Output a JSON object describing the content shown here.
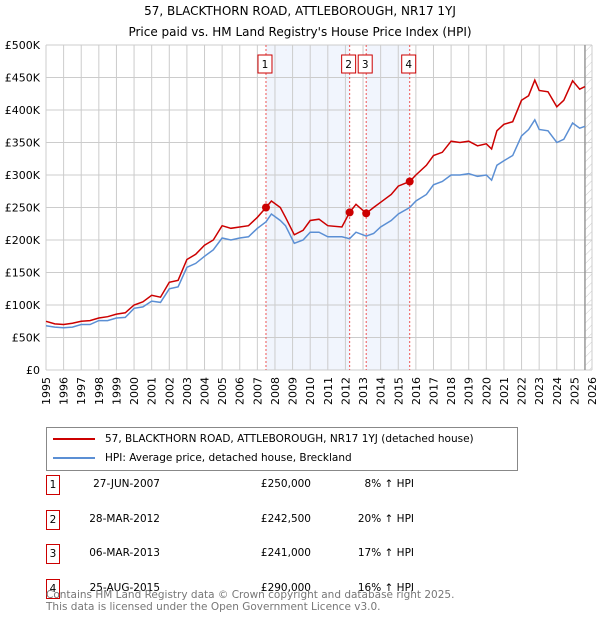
{
  "chart_data": {
    "type": "line",
    "title": "57, BLACKTHORN ROAD, ATTLEBOROUGH, NR17 1YJ",
    "subtitle": "Price paid vs. HM Land Registry's House Price Index (HPI)",
    "xlim": [
      1995,
      2026
    ],
    "ylim": [
      0,
      500000
    ],
    "x_ticks": [
      "1995",
      "1996",
      "1997",
      "1998",
      "1999",
      "2000",
      "2001",
      "2002",
      "2003",
      "2004",
      "2005",
      "2006",
      "2007",
      "2008",
      "2009",
      "2010",
      "2011",
      "2012",
      "2013",
      "2014",
      "2015",
      "2016",
      "2017",
      "2018",
      "2019",
      "2020",
      "2021",
      "2022",
      "2023",
      "2024",
      "2025",
      "2026"
    ],
    "y_ticks": [
      {
        "v": 0,
        "label": "£0"
      },
      {
        "v": 50000,
        "label": "£50K"
      },
      {
        "v": 100000,
        "label": "£100K"
      },
      {
        "v": 150000,
        "label": "£150K"
      },
      {
        "v": 200000,
        "label": "£200K"
      },
      {
        "v": 250000,
        "label": "£250K"
      },
      {
        "v": 300000,
        "label": "£300K"
      },
      {
        "v": 350000,
        "label": "£350K"
      },
      {
        "v": 400000,
        "label": "£400K"
      },
      {
        "v": 450000,
        "label": "£450K"
      },
      {
        "v": 500000,
        "label": "£500K"
      }
    ],
    "grid": true,
    "forecast_from": 2025.6,
    "shaded_ranges": [
      [
        2007.49,
        2012.24
      ],
      [
        2013.18,
        2015.65
      ]
    ],
    "series": [
      {
        "name": "57, BLACKTHORN ROAD, ATTLEBOROUGH, NR17 1YJ (detached house)",
        "color": "#cc0000",
        "x": [
          1995,
          1995.5,
          1996,
          1996.5,
          1997,
          1997.5,
          1998,
          1998.5,
          1999,
          1999.5,
          2000,
          2000.5,
          2001,
          2001.5,
          2002,
          2002.5,
          2003,
          2003.5,
          2004,
          2004.5,
          2005,
          2005.5,
          2006,
          2006.5,
          2007,
          2007.49,
          2007.8,
          2008.3,
          2008.6,
          2009.1,
          2009.6,
          2010,
          2010.5,
          2011,
          2011.8,
          2012.24,
          2012.6,
          2013.18,
          2013.6,
          2014,
          2014.6,
          2015,
          2015.65,
          2016,
          2016.6,
          2017,
          2017.5,
          2018,
          2018.5,
          2019,
          2019.5,
          2020,
          2020.3,
          2020.6,
          2021,
          2021.5,
          2022,
          2022.4,
          2022.75,
          2023,
          2023.5,
          2024,
          2024.4,
          2024.9,
          2025.3,
          2025.6
        ],
        "y": [
          75000,
          71000,
          70000,
          72000,
          75000,
          76000,
          80000,
          82000,
          86000,
          88000,
          100000,
          105000,
          115000,
          112000,
          135000,
          138000,
          170000,
          178000,
          192000,
          200000,
          222000,
          218000,
          220000,
          222000,
          235000,
          250000,
          260000,
          250000,
          235000,
          208000,
          215000,
          230000,
          232000,
          222000,
          220000,
          242500,
          255000,
          241000,
          250000,
          258000,
          270000,
          283000,
          290000,
          300000,
          315000,
          330000,
          335000,
          352000,
          350000,
          352000,
          345000,
          348000,
          340000,
          368000,
          378000,
          382000,
          415000,
          422000,
          446000,
          430000,
          428000,
          405000,
          415000,
          445000,
          432000,
          436000
        ]
      },
      {
        "name": "HPI: Average price, detached house, Breckland",
        "color": "#5b8fd4",
        "x": [
          1995,
          1995.5,
          1996,
          1996.5,
          1997,
          1997.5,
          1998,
          1998.5,
          1999,
          1999.5,
          2000,
          2000.5,
          2001,
          2001.5,
          2002,
          2002.5,
          2003,
          2003.5,
          2004,
          2004.5,
          2005,
          2005.5,
          2006,
          2006.5,
          2007,
          2007.49,
          2007.8,
          2008.3,
          2008.6,
          2009.1,
          2009.6,
          2010,
          2010.5,
          2011,
          2011.8,
          2012.24,
          2012.6,
          2013.18,
          2013.6,
          2014,
          2014.6,
          2015,
          2015.65,
          2016,
          2016.6,
          2017,
          2017.5,
          2018,
          2018.5,
          2019,
          2019.5,
          2020,
          2020.3,
          2020.6,
          2021,
          2021.5,
          2022,
          2022.4,
          2022.75,
          2023,
          2023.5,
          2024,
          2024.4,
          2024.9,
          2025.3,
          2025.6
        ],
        "y": [
          68000,
          66000,
          65000,
          66000,
          70000,
          70000,
          76000,
          76000,
          80000,
          81000,
          95000,
          97000,
          106000,
          104000,
          125000,
          128000,
          158000,
          164000,
          175000,
          185000,
          203000,
          200000,
          203000,
          205000,
          218000,
          228000,
          240000,
          230000,
          222000,
          195000,
          200000,
          212000,
          212000,
          205000,
          205000,
          202000,
          212000,
          206000,
          210000,
          220000,
          230000,
          240000,
          250000,
          260000,
          270000,
          285000,
          290000,
          300000,
          300000,
          302000,
          298000,
          300000,
          292000,
          315000,
          322000,
          330000,
          360000,
          370000,
          385000,
          370000,
          368000,
          350000,
          355000,
          380000,
          372000,
          375000
        ]
      }
    ],
    "sales": [
      {
        "id": "1",
        "x": 2007.49,
        "price": 250000,
        "date": "27-JUN-2007",
        "price_label": "£250,000",
        "hpi": "8% ↑ HPI"
      },
      {
        "id": "2",
        "x": 2012.24,
        "price": 242500,
        "date": "28-MAR-2012",
        "price_label": "£242,500",
        "hpi": "20% ↑ HPI"
      },
      {
        "id": "3",
        "x": 2013.18,
        "price": 241000,
        "date": "06-MAR-2013",
        "price_label": "£241,000",
        "hpi": "17% ↑ HPI"
      },
      {
        "id": "4",
        "x": 2015.65,
        "price": 290000,
        "date": "25-AUG-2015",
        "price_label": "£290,000",
        "hpi": "16% ↑ HPI"
      }
    ]
  },
  "legend": {
    "property": "57, BLACKTHORN ROAD, ATTLEBOROUGH, NR17 1YJ (detached house)",
    "hpi": "HPI: Average price, detached house, Breckland"
  },
  "footer": {
    "line1": "Contains HM Land Registry data © Crown copyright and database right 2025.",
    "line2": "This data is licensed under the Open Government Licence v3.0."
  }
}
